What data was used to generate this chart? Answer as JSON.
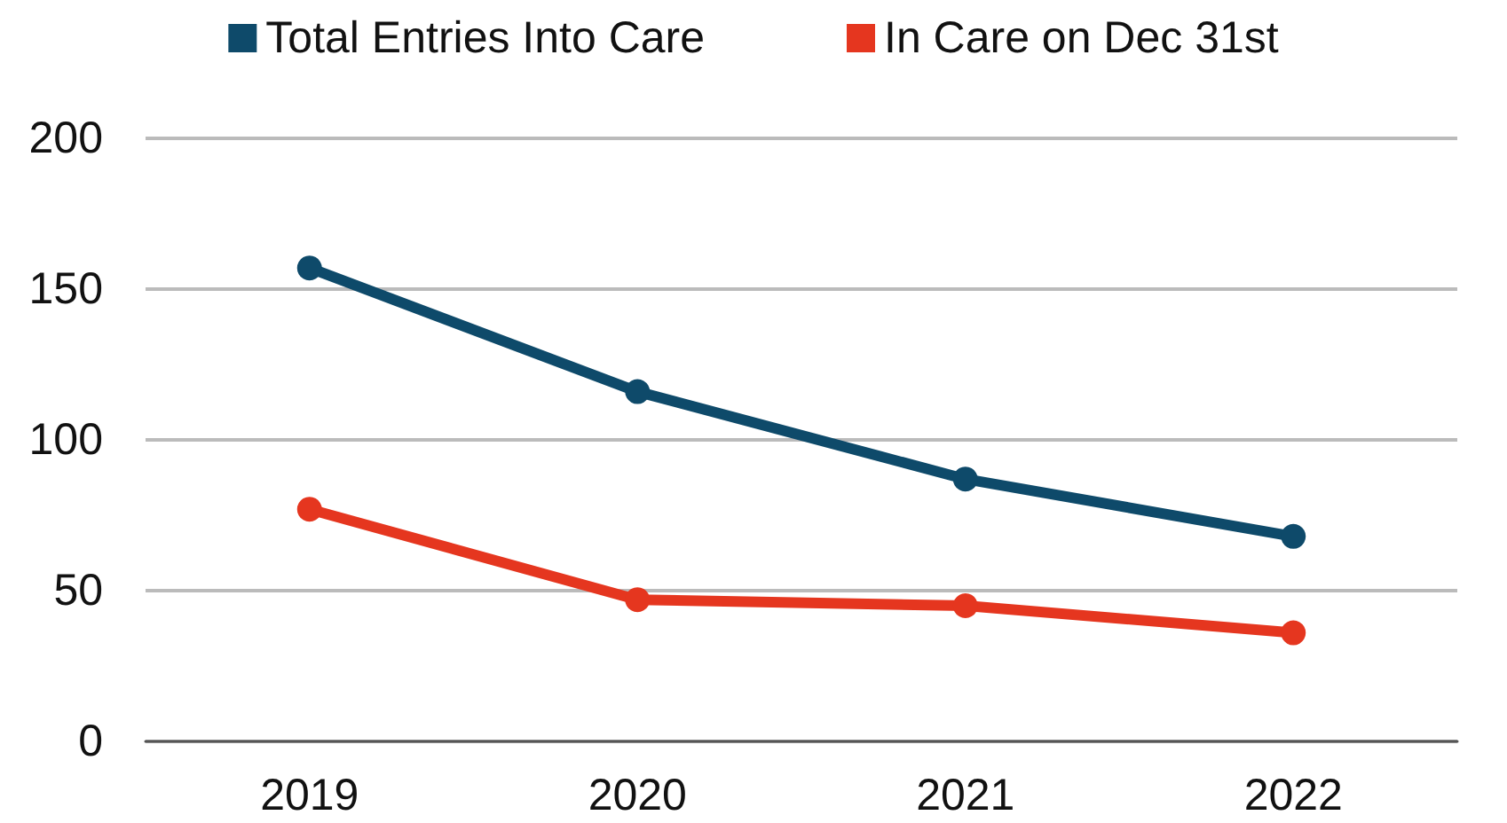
{
  "chart_data": {
    "type": "line",
    "categories": [
      "2019",
      "2020",
      "2021",
      "2022"
    ],
    "series": [
      {
        "name": "Total Entries Into Care",
        "color": "#0e4a6a",
        "values": [
          157,
          116,
          87,
          68
        ]
      },
      {
        "name": "In Care on Dec 31st",
        "color": "#e5361f",
        "values": [
          77,
          47,
          45,
          36
        ]
      }
    ],
    "ylim": [
      0,
      200
    ],
    "yticks": [
      0,
      50,
      100,
      150,
      200
    ],
    "grid": "y",
    "legend": "top",
    "marker": "circle",
    "line_style": "solid"
  }
}
